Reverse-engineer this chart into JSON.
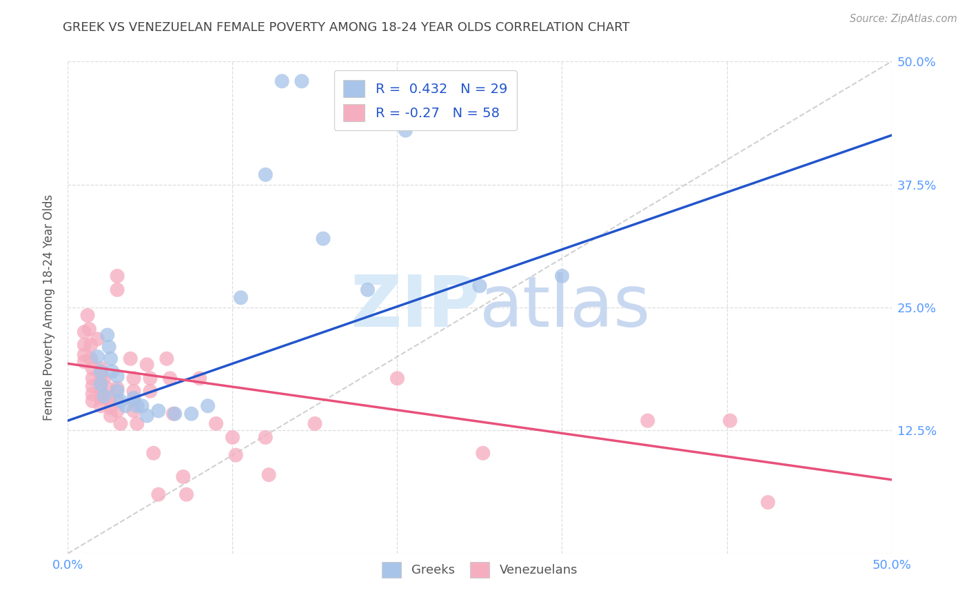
{
  "title": "GREEK VS VENEZUELAN FEMALE POVERTY AMONG 18-24 YEAR OLDS CORRELATION CHART",
  "source": "Source: ZipAtlas.com",
  "ylabel": "Female Poverty Among 18-24 Year Olds",
  "xlim": [
    0.0,
    0.5
  ],
  "ylim": [
    0.0,
    0.5
  ],
  "greek_R": 0.432,
  "greek_N": 29,
  "venezuelan_R": -0.27,
  "venezuelan_N": 58,
  "greek_color": "#a8c4e8",
  "venezuelan_color": "#f5aec0",
  "greek_line_color": "#2255cc",
  "venezuelan_line_color": "#e8507a",
  "diagonal_color": "#c8c8c8",
  "background_color": "#ffffff",
  "grid_color": "#dddddd",
  "watermark_color": "#ddeeff",
  "title_color": "#444444",
  "axis_tick_color": "#5599ff",
  "ylabel_color": "#555555",
  "greek_line_x0": 0.0,
  "greek_line_y0": 0.135,
  "greek_line_x1": 0.5,
  "greek_line_y1": 0.425,
  "ven_line_x0": 0.0,
  "ven_line_y0": 0.193,
  "ven_line_x1": 0.5,
  "ven_line_y1": 0.075,
  "greek_points": [
    [
      0.018,
      0.2
    ],
    [
      0.02,
      0.185
    ],
    [
      0.02,
      0.172
    ],
    [
      0.022,
      0.16
    ],
    [
      0.024,
      0.222
    ],
    [
      0.025,
      0.21
    ],
    [
      0.026,
      0.198
    ],
    [
      0.027,
      0.185
    ],
    [
      0.03,
      0.18
    ],
    [
      0.03,
      0.165
    ],
    [
      0.032,
      0.155
    ],
    [
      0.035,
      0.15
    ],
    [
      0.04,
      0.158
    ],
    [
      0.042,
      0.15
    ],
    [
      0.045,
      0.15
    ],
    [
      0.048,
      0.14
    ],
    [
      0.055,
      0.145
    ],
    [
      0.065,
      0.142
    ],
    [
      0.075,
      0.142
    ],
    [
      0.085,
      0.15
    ],
    [
      0.105,
      0.26
    ],
    [
      0.12,
      0.385
    ],
    [
      0.13,
      0.48
    ],
    [
      0.142,
      0.48
    ],
    [
      0.155,
      0.32
    ],
    [
      0.182,
      0.268
    ],
    [
      0.25,
      0.272
    ],
    [
      0.3,
      0.282
    ],
    [
      0.205,
      0.43
    ]
  ],
  "venezuelan_points": [
    [
      0.01,
      0.225
    ],
    [
      0.01,
      0.212
    ],
    [
      0.01,
      0.202
    ],
    [
      0.01,
      0.195
    ],
    [
      0.012,
      0.242
    ],
    [
      0.013,
      0.228
    ],
    [
      0.014,
      0.212
    ],
    [
      0.014,
      0.198
    ],
    [
      0.015,
      0.188
    ],
    [
      0.015,
      0.178
    ],
    [
      0.015,
      0.17
    ],
    [
      0.015,
      0.162
    ],
    [
      0.015,
      0.155
    ],
    [
      0.018,
      0.218
    ],
    [
      0.02,
      0.188
    ],
    [
      0.02,
      0.178
    ],
    [
      0.02,
      0.165
    ],
    [
      0.02,
      0.158
    ],
    [
      0.02,
      0.15
    ],
    [
      0.022,
      0.178
    ],
    [
      0.024,
      0.168
    ],
    [
      0.025,
      0.158
    ],
    [
      0.026,
      0.148
    ],
    [
      0.026,
      0.14
    ],
    [
      0.03,
      0.282
    ],
    [
      0.03,
      0.268
    ],
    [
      0.03,
      0.168
    ],
    [
      0.03,
      0.155
    ],
    [
      0.03,
      0.145
    ],
    [
      0.032,
      0.132
    ],
    [
      0.038,
      0.198
    ],
    [
      0.04,
      0.178
    ],
    [
      0.04,
      0.165
    ],
    [
      0.04,
      0.155
    ],
    [
      0.04,
      0.145
    ],
    [
      0.042,
      0.132
    ],
    [
      0.048,
      0.192
    ],
    [
      0.05,
      0.178
    ],
    [
      0.05,
      0.165
    ],
    [
      0.052,
      0.102
    ],
    [
      0.06,
      0.198
    ],
    [
      0.062,
      0.178
    ],
    [
      0.064,
      0.142
    ],
    [
      0.07,
      0.078
    ],
    [
      0.072,
      0.06
    ],
    [
      0.08,
      0.178
    ],
    [
      0.09,
      0.132
    ],
    [
      0.1,
      0.118
    ],
    [
      0.102,
      0.1
    ],
    [
      0.12,
      0.118
    ],
    [
      0.122,
      0.08
    ],
    [
      0.15,
      0.132
    ],
    [
      0.2,
      0.178
    ],
    [
      0.252,
      0.102
    ],
    [
      0.352,
      0.135
    ],
    [
      0.402,
      0.135
    ],
    [
      0.425,
      0.052
    ],
    [
      0.055,
      0.06
    ]
  ]
}
